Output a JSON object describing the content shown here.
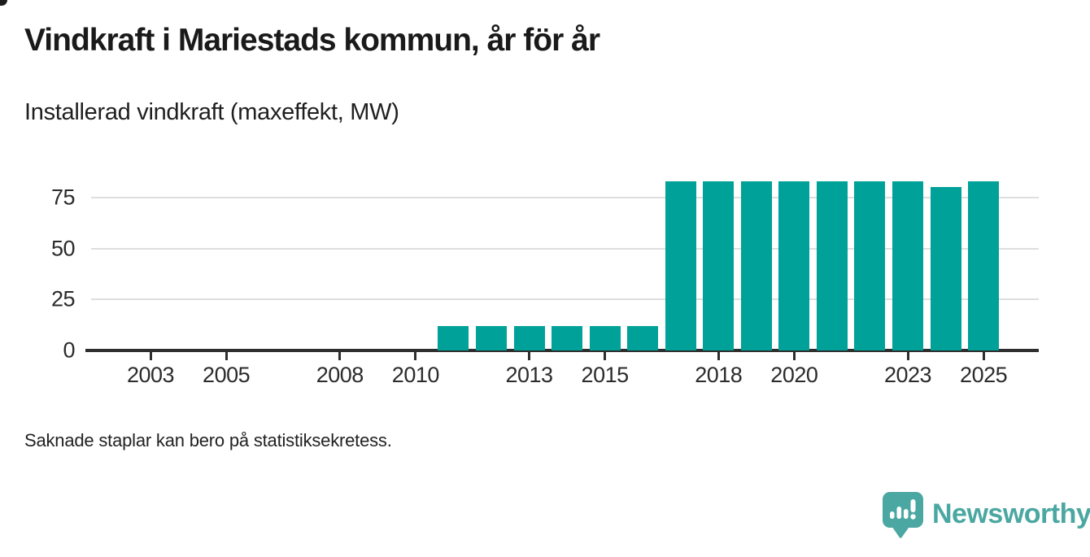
{
  "title": "Vindkraft i Mariestads kommun, år för år",
  "subtitle": "Installerad vindkraft (maxeffekt, MW)",
  "footnote": "Saknade staplar kan bero på statistiksekretess.",
  "logo": {
    "text": "Newsworthy",
    "icon": "newsworthy-speech-bubble-bar-chart-icon",
    "color": "#4ba7a1"
  },
  "colors": {
    "bar": "#00a198",
    "grid": "#dedede",
    "axis": "#2e2e2e",
    "title_text": "#1a1a1a",
    "body_text": "#222222"
  },
  "chart_data": {
    "type": "bar",
    "title": "Vindkraft i Mariestads kommun, år för år",
    "subtitle": "Installerad vindkraft (maxeffekt, MW)",
    "unit": "MW",
    "x": [
      2011,
      2012,
      2013,
      2014,
      2015,
      2016,
      2017,
      2018,
      2019,
      2020,
      2021,
      2022,
      2023,
      2024,
      2025
    ],
    "values": [
      12,
      12,
      12,
      12,
      12,
      12,
      83,
      83,
      83,
      83,
      83,
      83,
      83,
      80,
      83
    ],
    "x_ticks": [
      2003,
      2005,
      2008,
      2010,
      2013,
      2015,
      2018,
      2020,
      2023,
      2025
    ],
    "y_ticks": [
      0,
      25,
      50,
      75
    ],
    "x_range": [
      2002,
      2026
    ],
    "ylim": [
      0,
      92
    ],
    "grid": "horizontal-only",
    "legend": "none",
    "bar_color": "#00a198",
    "note": "Missing bars 2002-2010; footnote explains missing bars may be due to statistical secrecy"
  }
}
